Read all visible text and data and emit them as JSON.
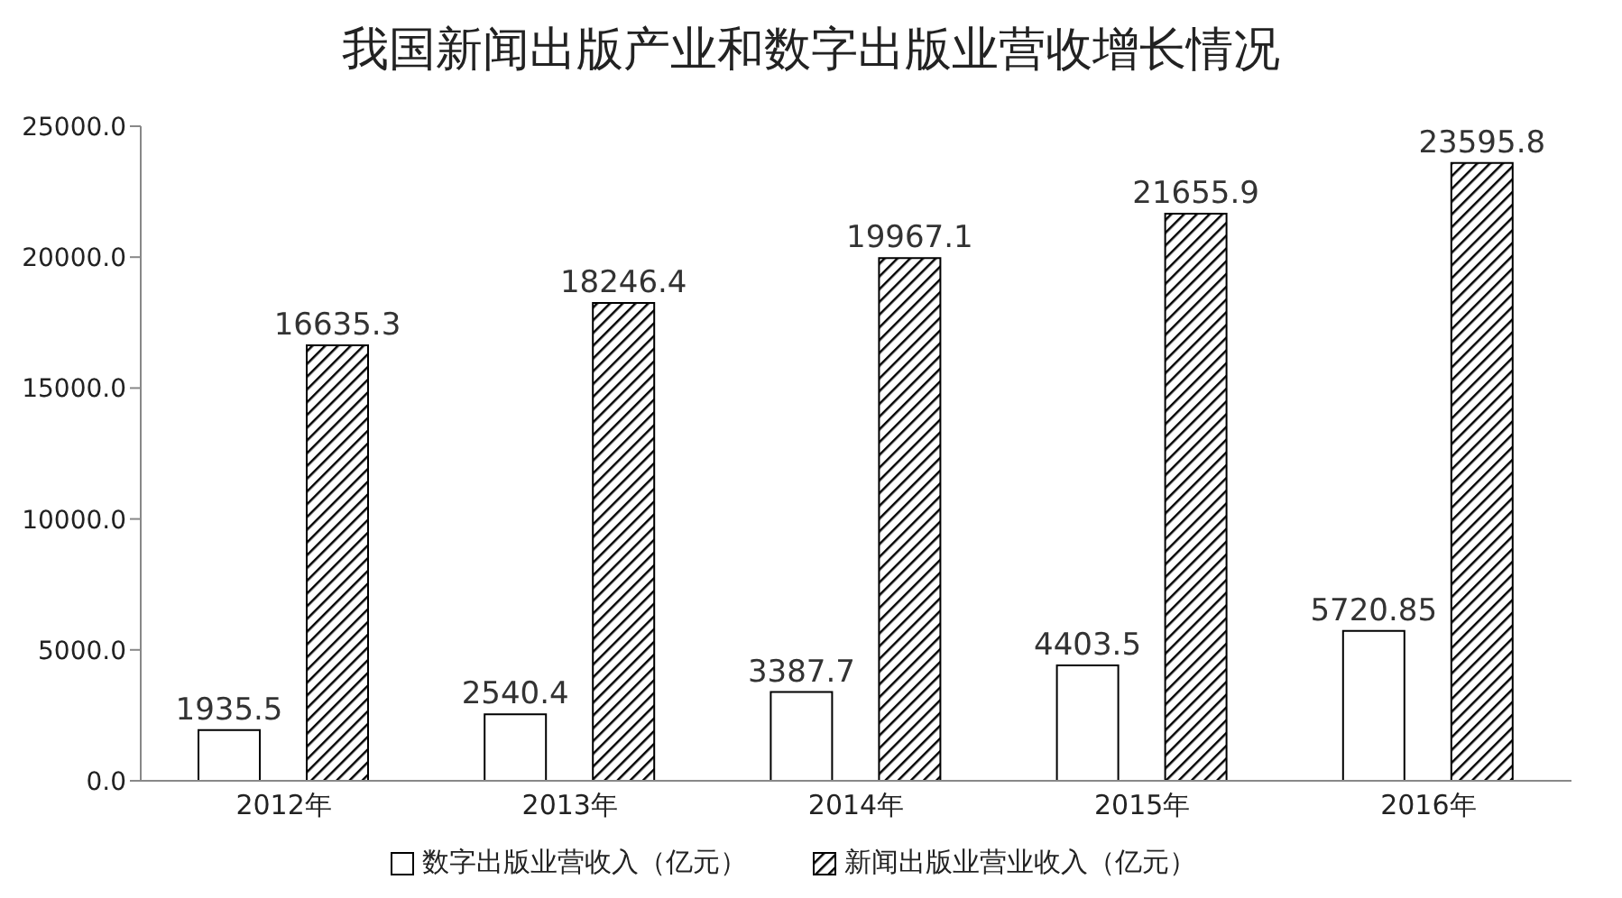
{
  "chart_data": {
    "type": "bar",
    "title": "我国新闻出版产业和数字出版业营收增长情况",
    "categories": [
      "2012年",
      "2013年",
      "2014年",
      "2015年",
      "2016年"
    ],
    "series": [
      {
        "name": "数字出版业营收入（亿元）",
        "color": "#ffffff",
        "values": [
          1935.5,
          2540.4,
          3387.7,
          4403.5,
          5720.85
        ]
      },
      {
        "name": "新闻出版业营业收入（亿元）",
        "color": "#000000",
        "values": [
          16635.3,
          18246.4,
          19967.1,
          21655.9,
          23595.8
        ]
      }
    ],
    "ylim": [
      0,
      25000
    ],
    "yticks": [
      {
        "value": 0,
        "label": "0.0"
      },
      {
        "value": 5000,
        "label": "5000.0"
      },
      {
        "value": 10000,
        "label": "10000.0"
      },
      {
        "value": 15000,
        "label": "15000.0"
      },
      {
        "value": 20000,
        "label": "20000.0"
      },
      {
        "value": 25000,
        "label": "25000.0"
      }
    ],
    "data_labels": true,
    "grid": false,
    "legend": "bottom"
  }
}
